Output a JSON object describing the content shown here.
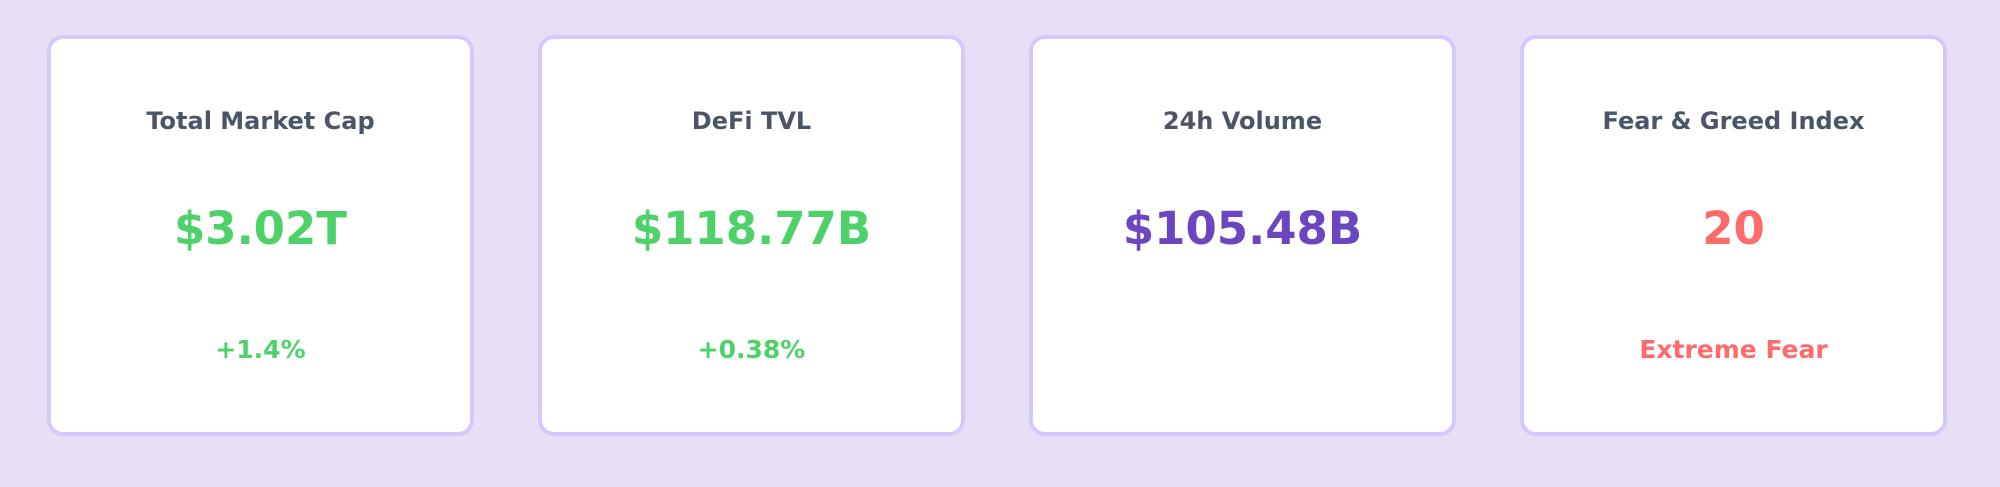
{
  "colors": {
    "background": "#e7dff5",
    "card_background": "#ffffff",
    "card_border": "#d6c8fa",
    "title_text": "#4a5568",
    "positive": "#4fd16a",
    "accent": "#6b46c1",
    "fear": "#ff6b6b"
  },
  "cards": [
    {
      "title": "Total Market Cap",
      "value": "$3.02T",
      "value_color": "#4fd16a",
      "sub": "+1.4%",
      "sub_color": "#4fd16a"
    },
    {
      "title": "DeFi TVL",
      "value": "$118.77B",
      "value_color": "#4fd16a",
      "sub": "+0.38%",
      "sub_color": "#4fd16a"
    },
    {
      "title": "24h Volume",
      "value": "$105.48B",
      "value_color": "#6b46c1",
      "sub": "",
      "sub_color": "#6b46c1"
    },
    {
      "title": "Fear & Greed Index",
      "value": "20",
      "value_color": "#ff6b6b",
      "sub": "Extreme Fear",
      "sub_color": "#ff6b6b"
    }
  ]
}
